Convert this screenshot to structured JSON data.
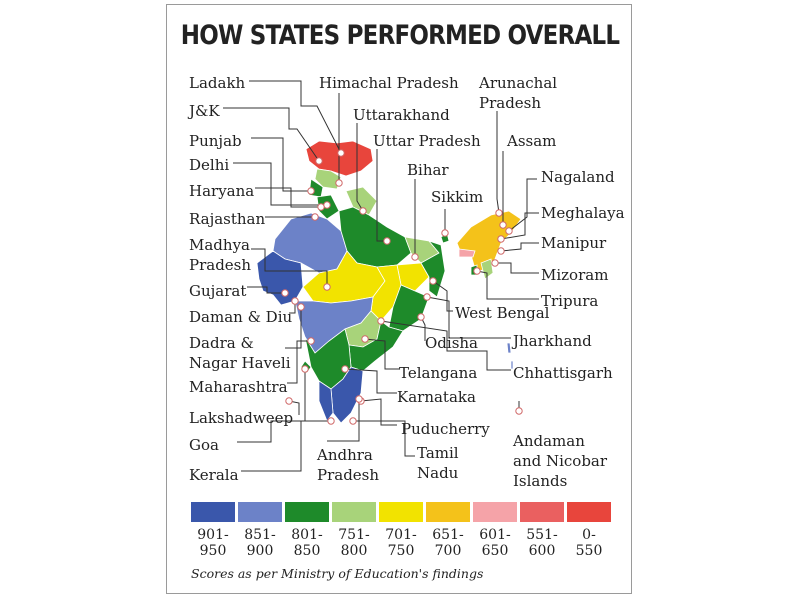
{
  "title": "HOW STATES PERFORMED OVERALL",
  "footnote": "Scores as per Ministry of Education's findings",
  "colors": {
    "c901_950": "#3a57ab",
    "c851_900": "#6c82c8",
    "c801_850": "#1e8a2a",
    "c751_800": "#a8d37a",
    "c701_750": "#f2e300",
    "c651_700": "#f4c21a",
    "c601_650": "#f5a3a8",
    "c551_600": "#ea6060",
    "c0_550": "#e8453c",
    "leader": "#333333"
  },
  "legend": [
    {
      "range": [
        "901-",
        "950"
      ],
      "color_key": "c901_950"
    },
    {
      "range": [
        "851-",
        "900"
      ],
      "color_key": "c851_900"
    },
    {
      "range": [
        "801-",
        "850"
      ],
      "color_key": "c801_850"
    },
    {
      "range": [
        "751-",
        "800"
      ],
      "color_key": "c751_800"
    },
    {
      "range": [
        "701-",
        "750"
      ],
      "color_key": "c701_750"
    },
    {
      "range": [
        "651-",
        "700"
      ],
      "color_key": "c651_700"
    },
    {
      "range": [
        "601-",
        "650"
      ],
      "color_key": "c601_650"
    },
    {
      "range": [
        "551-",
        "600"
      ],
      "color_key": "c551_600"
    },
    {
      "range": [
        "0-",
        "550"
      ],
      "color_key": "c0_550"
    }
  ],
  "labels": {
    "ladakh": "Ladakh",
    "jk": "J&K",
    "punjab": "Punjab",
    "delhi": "Delhi",
    "haryana": "Haryana",
    "rajasthan": "Rajasthan",
    "madhya_pradesh": [
      "Madhya",
      "Pradesh"
    ],
    "gujarat": "Gujarat",
    "daman_diu": "Daman & Diu",
    "dadra": [
      "Dadra &",
      "Nagar Haveli"
    ],
    "maharashtra": "Maharashtra",
    "lakshadweep": "Lakshadweep",
    "goa": "Goa",
    "kerala": "Kerala",
    "himachal": "Himachal Pradesh",
    "uttarakhand": "Uttarakhand",
    "uttar_pradesh": "Uttar Pradesh",
    "bihar": "Bihar",
    "sikkim": "Sikkim",
    "arunachal": [
      "Arunachal",
      "Pradesh"
    ],
    "assam": "Assam",
    "nagaland": "Nagaland",
    "meghalaya": "Meghalaya",
    "manipur": "Manipur",
    "mizoram": "Mizoram",
    "tripura": "Tripura",
    "west_bengal": "West Bengal",
    "jharkhand": "Jharkhand",
    "odisha": "Odisha",
    "chhattisgarh": "Chhattisgarh",
    "telangana": "Telangana",
    "karnataka": "Karnataka",
    "puducherry": "Puducherry",
    "tamil_nadu": [
      "Tamil",
      "Nadu"
    ],
    "andhra": [
      "Andhra",
      "Pradesh"
    ],
    "andaman": [
      "Andaman",
      "and Nicobar",
      "Islands"
    ]
  }
}
